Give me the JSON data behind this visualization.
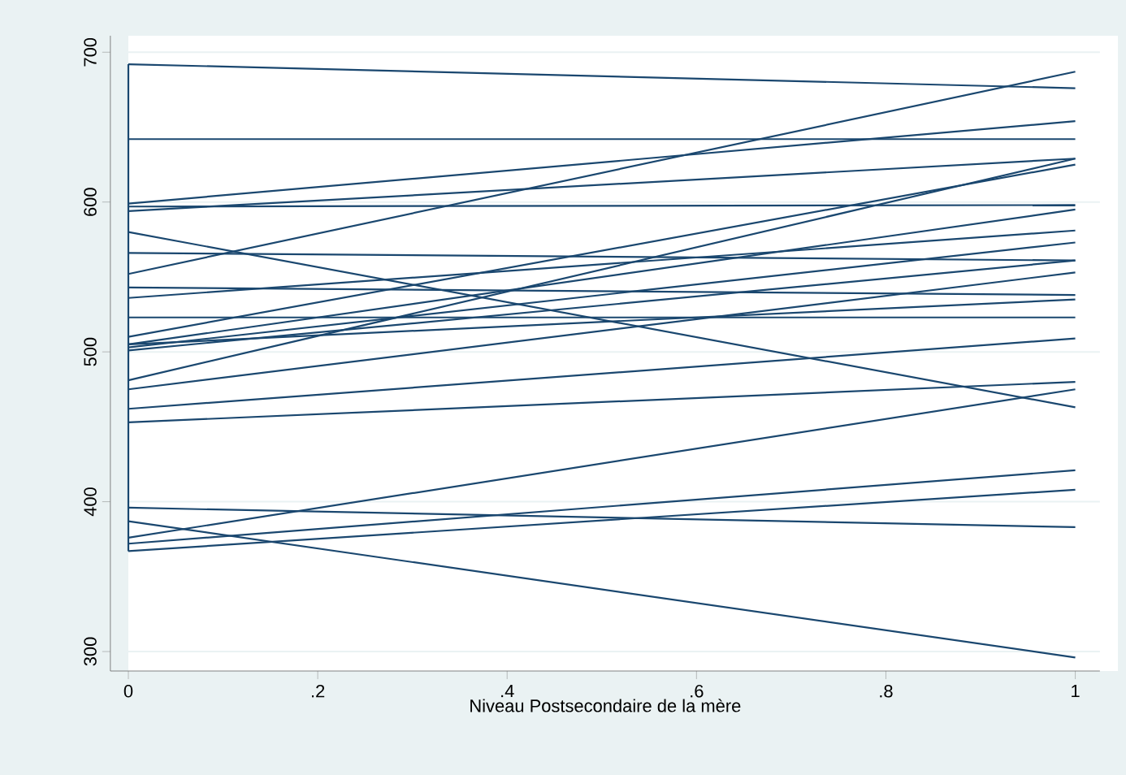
{
  "chart_data": {
    "type": "line",
    "xlabel": "Niveau Postsecondaire de la mère",
    "x": [
      0,
      1
    ],
    "xlim": [
      -0.019,
      1.026
    ],
    "ylim": [
      287,
      711
    ],
    "xticks": [
      {
        "value": 0,
        "label": "0"
      },
      {
        "value": 0.2,
        "label": ".2"
      },
      {
        "value": 0.4,
        "label": ".4"
      },
      {
        "value": 0.6,
        "label": ".6"
      },
      {
        "value": 0.8,
        "label": ".8"
      },
      {
        "value": 1,
        "label": "1"
      }
    ],
    "yticks": [
      300,
      400,
      500,
      600,
      700
    ],
    "grid": "y",
    "marker": "none",
    "line_style": "solid",
    "series": [
      {
        "color": "#1a476f",
        "x": [
          0,
          0
        ],
        "values": [
          692,
          367
        ]
      },
      {
        "color": "#1a476f",
        "values": [
          692,
          676
        ]
      },
      {
        "color": "#1a476f",
        "values": [
          642,
          642
        ]
      },
      {
        "color": "#1a476f",
        "values": [
          599,
          654
        ]
      },
      {
        "color": "#1a476f",
        "values": [
          594,
          629
        ]
      },
      {
        "color": "#1a476f",
        "values": [
          597,
          598
        ]
      },
      {
        "color": "#1a476f",
        "values": [
          580,
          463
        ]
      },
      {
        "color": "#1a476f",
        "values": [
          566,
          561
        ]
      },
      {
        "color": "#1a476f",
        "values": [
          552,
          687
        ]
      },
      {
        "color": "#1a476f",
        "values": [
          543,
          538
        ]
      },
      {
        "color": "#1a476f",
        "values": [
          536,
          581
        ]
      },
      {
        "color": "#1a476f",
        "values": [
          523,
          523
        ]
      },
      {
        "color": "#1a476f",
        "values": [
          510,
          625
        ]
      },
      {
        "color": "#1a476f",
        "values": [
          505,
          595
        ]
      },
      {
        "color": "#1a476f",
        "values": [
          501,
          561
        ]
      },
      {
        "color": "#1a476f",
        "values": [
          503,
          573
        ]
      },
      {
        "color": "#1a476f",
        "values": [
          481,
          629
        ]
      },
      {
        "color": "#1a476f",
        "values": [
          475,
          553
        ]
      },
      {
        "color": "#1a476f",
        "values": [
          505,
          535
        ]
      },
      {
        "color": "#1a476f",
        "values": [
          462,
          509
        ]
      },
      {
        "color": "#1a476f",
        "values": [
          453,
          480
        ]
      },
      {
        "color": "#1a476f",
        "values": [
          396,
          383
        ]
      },
      {
        "color": "#1a476f",
        "values": [
          387,
          296
        ]
      },
      {
        "color": "#1a476f",
        "values": [
          376,
          475
        ]
      },
      {
        "color": "#1a476f",
        "values": [
          367,
          408
        ]
      },
      {
        "color": "#1a476f",
        "values": [
          372,
          421
        ]
      }
    ]
  }
}
